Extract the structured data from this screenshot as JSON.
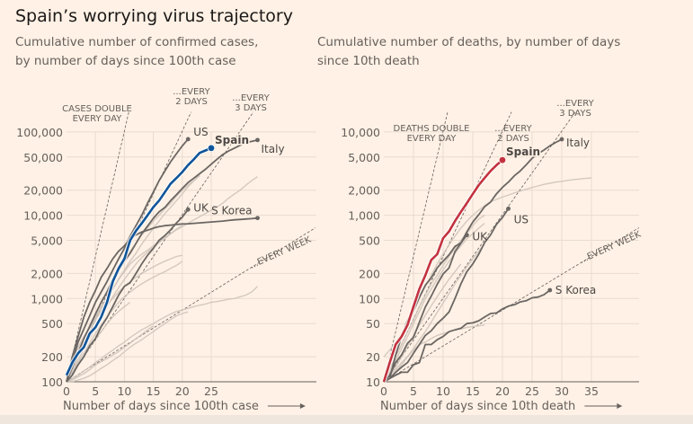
{
  "title": "Spain’s worrying virus trajectory",
  "colors": {
    "background": "#fff1e5",
    "spain_cases": "#0f5499",
    "spain_deaths": "#c3323f",
    "highlight": "#6b6663",
    "other": "#cdc2b8",
    "grid": "#e8dbd0"
  },
  "chart_data": [
    {
      "type": "line",
      "subtitle": [
        "Cumulative number of confirmed cases,",
        "by number of days since 100th case"
      ],
      "xlabel": "Number of days since 100th case",
      "y_scale": "log",
      "xlim": [
        0,
        43
      ],
      "ylim": [
        100,
        100000
      ],
      "xticks": [
        0,
        5,
        10,
        15,
        20,
        25
      ],
      "yticks": [
        100,
        200,
        500,
        1000,
        2000,
        5000,
        10000,
        20000,
        50000,
        100000
      ],
      "ytick_labels": [
        "100",
        "200",
        "500",
        "1,000",
        "2,000",
        "5,000",
        "10,000",
        "20,000",
        "50,000",
        "100,000"
      ],
      "grid": true,
      "guides": [
        {
          "label": [
            "CASES DOUBLE",
            "EVERY DAY"
          ],
          "doubling_days": 1
        },
        {
          "label": [
            "...EVERY",
            "2 DAYS"
          ],
          "doubling_days": 2
        },
        {
          "label": [
            "...EVERY",
            "3 DAYS"
          ],
          "doubling_days": 3
        },
        {
          "label": [
            "...EVERY WEEK"
          ],
          "doubling_days": 7
        }
      ],
      "series": [
        {
          "values": [
            100,
            150,
            230,
            330,
            480,
            650,
            900,
            1200,
            1600,
            2100,
            2800,
            3700,
            4600,
            5800,
            7000,
            8500,
            10000,
            12000,
            14000,
            17000,
            20000,
            23000,
            26000,
            30000
          ],
          "style": "other"
        },
        {
          "values": [
            100,
            130,
            180,
            250,
            330,
            450,
            600,
            800,
            1050,
            1350,
            1700,
            2100,
            2600,
            3100,
            3600,
            4100,
            4700,
            5300,
            6000,
            6800,
            7500
          ],
          "style": "other"
        },
        {
          "values": [
            100,
            120,
            160,
            200,
            260,
            330,
            400,
            500,
            600,
            700,
            800,
            900
          ],
          "style": "other"
        },
        {
          "values": [
            100,
            105,
            115,
            125,
            140,
            160,
            175,
            190,
            210,
            230,
            260,
            290,
            330,
            370,
            420,
            470
          ],
          "style": "other"
        },
        {
          "values": [
            100,
            100,
            105,
            110,
            118,
            130,
            145,
            160,
            180,
            200,
            230,
            260,
            290,
            320,
            360,
            400,
            450,
            500,
            560,
            620,
            660,
            690
          ],
          "style": "other"
        },
        {
          "values": [
            100,
            110,
            120,
            135,
            150,
            170,
            190,
            215,
            240,
            270,
            300,
            340,
            380,
            420,
            460,
            500,
            550,
            600,
            650,
            700,
            730,
            760,
            800,
            830,
            860,
            900,
            920,
            950,
            980,
            1000,
            1050,
            1100,
            1200,
            1400
          ],
          "style": "other"
        },
        {
          "values": [
            100,
            140,
            200,
            280,
            400,
            550,
            750,
            1000,
            1300,
            1700,
            2100,
            2600,
            3000,
            3400,
            3800,
            4300,
            4800,
            5400,
            6000,
            6700,
            7300,
            8000,
            8800,
            9600,
            10500,
            11500,
            12500,
            14000,
            16000,
            18000,
            20000,
            23000,
            26000,
            29000
          ],
          "style": "other"
        },
        {
          "values": [
            100,
            160,
            240,
            330,
            450,
            600,
            800,
            1000,
            1300,
            1700,
            2200,
            2800,
            3500,
            4500,
            5600,
            7000,
            8500,
            10500,
            12500,
            15000,
            18000,
            22000,
            26000,
            30000
          ],
          "style": "other"
        },
        {
          "values": [
            100,
            180,
            260,
            350,
            450,
            560,
            700,
            850,
            1000,
            1200,
            1400,
            1600,
            1800,
            2000,
            2200,
            2400,
            2600,
            2800,
            3000,
            3200,
            3300
          ],
          "style": "other"
        },
        {
          "values": [
            100,
            130,
            170,
            220,
            290,
            380,
            480,
            600,
            740,
            900,
            1050,
            1200,
            1350,
            1500,
            1650,
            1800,
            1950,
            2100,
            2300,
            2500,
            2800
          ],
          "style": "other"
        },
        {
          "name": "US",
          "values": [
            100,
            170,
            300,
            430,
            620,
            900,
            1200,
            1600,
            2200,
            3000,
            4000,
            5600,
            7500,
            10000,
            14000,
            19000,
            26000,
            34000,
            44000,
            55000,
            68000,
            82000
          ],
          "style": "highlight"
        },
        {
          "name": "Italy",
          "values": [
            100,
            150,
            220,
            330,
            460,
            650,
            900,
            1200,
            1700,
            2200,
            2800,
            3500,
            4600,
            6000,
            7400,
            9200,
            11000,
            12400,
            15000,
            17700,
            21000,
            24700,
            27900,
            31500,
            35700,
            41000,
            47000,
            53600,
            59100,
            63900,
            69200,
            74400,
            77000,
            80000
          ],
          "style": "highlight"
        },
        {
          "name": "S Korea",
          "values": [
            100,
            200,
            350,
            600,
            900,
            1250,
            1800,
            2300,
            3000,
            3700,
            4300,
            5200,
            5800,
            6300,
            6600,
            7000,
            7300,
            7500,
            7600,
            7750,
            7850,
            7900,
            8000,
            8100,
            8200,
            8300,
            8400,
            8500,
            8650,
            8800,
            8900,
            9000,
            9100,
            9250
          ],
          "style": "highlight"
        },
        {
          "name": "UK",
          "values": [
            100,
            120,
            160,
            200,
            270,
            330,
            460,
            590,
            800,
            1100,
            1400,
            1550,
            2000,
            2600,
            3300,
            4000,
            5000,
            5700,
            6700,
            8100,
            9500,
            11700
          ],
          "style": "highlight"
        },
        {
          "name": "Spain",
          "values": [
            120,
            170,
            220,
            260,
            380,
            450,
            600,
            900,
            1600,
            2300,
            3000,
            5000,
            6500,
            8000,
            10000,
            12500,
            15000,
            19000,
            24000,
            28000,
            33000,
            40000,
            47000,
            56000,
            60000,
            64000
          ],
          "style": "spain_cases"
        }
      ]
    },
    {
      "type": "line",
      "subtitle": [
        "Cumulative number of deaths, by number of days",
        "since 10th death"
      ],
      "xlabel": "Number of days since 10th death",
      "y_scale": "log",
      "xlim": [
        0,
        43
      ],
      "ylim": [
        10,
        10000
      ],
      "xticks": [
        0,
        5,
        10,
        15,
        20,
        25,
        30,
        35
      ],
      "yticks": [
        10,
        20,
        50,
        100,
        200,
        500,
        1000,
        2000,
        5000,
        10000
      ],
      "ytick_labels": [
        "10",
        "20",
        "50",
        "100",
        "200",
        "500",
        "1,000",
        "2,000",
        "5,000",
        "10,000"
      ],
      "grid": true,
      "guides": [
        {
          "label": [
            "DEATHS DOUBLE",
            "EVERY DAY"
          ],
          "doubling_days": 1
        },
        {
          "label": [
            "...EVERY",
            "2 DAYS"
          ],
          "doubling_days": 2
        },
        {
          "label": [
            "...EVERY",
            "3 DAYS"
          ],
          "doubling_days": 3
        },
        {
          "label": [
            "...EVERY WEEK"
          ],
          "doubling_days": 7
        }
      ],
      "series": [
        {
          "values": [
            20,
            24,
            30,
            38,
            50,
            70,
            100,
            140,
            190,
            260,
            340,
            440,
            560,
            700,
            850,
            1000,
            1150,
            1300,
            1450,
            1550,
            1650,
            1750,
            1850,
            1950,
            2050,
            2150,
            2250,
            2350,
            2420,
            2500,
            2550,
            2620,
            2680,
            2720,
            2770,
            2800
          ],
          "style": "other"
        },
        {
          "values": [
            10,
            12,
            14,
            17,
            20,
            24,
            28,
            30,
            33,
            36,
            38,
            40,
            42,
            43,
            45,
            46,
            47,
            48
          ],
          "style": "other"
        },
        {
          "values": [
            10,
            14,
            20,
            28,
            40,
            55,
            80,
            110,
            150,
            190,
            250,
            320,
            400,
            500,
            600,
            750,
            900,
            1000
          ],
          "style": "other"
        },
        {
          "values": [
            10,
            13,
            18,
            25,
            35,
            50,
            70,
            100,
            130,
            170,
            220,
            280,
            350,
            430,
            520,
            600,
            700,
            800
          ],
          "style": "other"
        },
        {
          "values": [
            10,
            12,
            15,
            20,
            27,
            36,
            48,
            63,
            82,
            105,
            135,
            170,
            210,
            260
          ],
          "style": "other"
        },
        {
          "values": [
            10,
            11,
            13,
            16,
            20,
            25,
            32,
            40,
            52,
            68,
            88,
            115,
            150,
            190,
            240,
            300,
            370,
            450
          ],
          "style": "other"
        },
        {
          "name": "US",
          "values": [
            10,
            11,
            13,
            15,
            17,
            22,
            28,
            36,
            41,
            50,
            58,
            69,
            100,
            150,
            210,
            260,
            340,
            470,
            580,
            780,
            940,
            1200
          ],
          "style": "highlight"
        },
        {
          "name": "Italy",
          "values": [
            10,
            12,
            17,
            21,
            29,
            34,
            52,
            79,
            107,
            148,
            197,
            233,
            366,
            463,
            631,
            827,
            1016,
            1266,
            1441,
            1809,
            2158,
            2503,
            2978,
            3405,
            4032,
            4825,
            5476,
            6077,
            6820,
            7503,
            8165
          ],
          "style": "highlight"
        },
        {
          "name": "UK",
          "values": [
            10,
            11,
            21,
            35,
            55,
            71,
            104,
            144,
            177,
            233,
            281,
            335,
            422,
            465,
            578
          ],
          "style": "highlight"
        },
        {
          "name": "S Korea",
          "values": [
            10,
            11,
            12,
            13,
            13,
            16,
            17,
            28,
            28,
            32,
            35,
            40,
            42,
            44,
            50,
            51,
            54,
            60,
            66,
            67,
            75,
            81,
            84,
            91,
            94,
            102,
            104,
            111,
            126
          ],
          "style": "highlight"
        },
        {
          "name": "Spain",
          "values": [
            10,
            17,
            28,
            35,
            48,
            80,
            130,
            190,
            290,
            340,
            530,
            640,
            850,
            1100,
            1400,
            1800,
            2300,
            2800,
            3400,
            4000,
            4600
          ],
          "style": "spain_deaths"
        }
      ]
    }
  ]
}
